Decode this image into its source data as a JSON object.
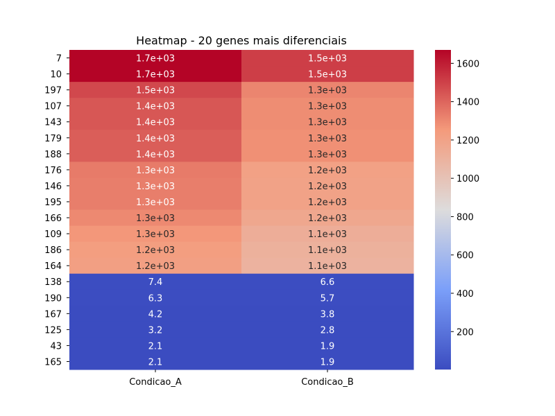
{
  "chart_data": {
    "type": "heatmap",
    "title": "Heatmap - 20 genes mais diferenciais",
    "columns": [
      "Condicao_A",
      "Condicao_B"
    ],
    "rows": [
      "7",
      "10",
      "197",
      "107",
      "143",
      "179",
      "188",
      "176",
      "146",
      "195",
      "166",
      "109",
      "186",
      "164",
      "138",
      "190",
      "167",
      "125",
      "43",
      "165"
    ],
    "values": [
      [
        1670,
        1510
      ],
      [
        1670,
        1510
      ],
      [
        1480,
        1310
      ],
      [
        1440,
        1290
      ],
      [
        1440,
        1290
      ],
      [
        1420,
        1280
      ],
      [
        1420,
        1280
      ],
      [
        1340,
        1210
      ],
      [
        1330,
        1200
      ],
      [
        1330,
        1200
      ],
      [
        1300,
        1170
      ],
      [
        1260,
        1130
      ],
      [
        1230,
        1110
      ],
      [
        1220,
        1100
      ],
      [
        7.4,
        6.6
      ],
      [
        6.3,
        5.7
      ],
      [
        4.2,
        3.8
      ],
      [
        3.2,
        2.8
      ],
      [
        2.1,
        1.9
      ],
      [
        2.1,
        1.9
      ]
    ],
    "annotations": [
      [
        "1.7e+03",
        "1.5e+03"
      ],
      [
        "1.7e+03",
        "1.5e+03"
      ],
      [
        "1.5e+03",
        "1.3e+03"
      ],
      [
        "1.4e+03",
        "1.3e+03"
      ],
      [
        "1.4e+03",
        "1.3e+03"
      ],
      [
        "1.4e+03",
        "1.3e+03"
      ],
      [
        "1.4e+03",
        "1.3e+03"
      ],
      [
        "1.3e+03",
        "1.2e+03"
      ],
      [
        "1.3e+03",
        "1.2e+03"
      ],
      [
        "1.3e+03",
        "1.2e+03"
      ],
      [
        "1.3e+03",
        "1.2e+03"
      ],
      [
        "1.3e+03",
        "1.1e+03"
      ],
      [
        "1.2e+03",
        "1.1e+03"
      ],
      [
        "1.2e+03",
        "1.1e+03"
      ],
      [
        "7.4",
        "6.6"
      ],
      [
        "6.3",
        "5.7"
      ],
      [
        "4.2",
        "3.8"
      ],
      [
        "3.2",
        "2.8"
      ],
      [
        "2.1",
        "1.9"
      ],
      [
        "2.1",
        "1.9"
      ]
    ],
    "colormap": "coolwarm",
    "color_range": [
      1.9,
      1670
    ],
    "colorbar_ticks": [
      200,
      400,
      600,
      800,
      1000,
      1200,
      1400,
      1600
    ],
    "colorbar_tick_labels": [
      "200",
      "400",
      "600",
      "800",
      "1000",
      "1200",
      "1400",
      "1600"
    ],
    "grid": false,
    "legend": "colorbar-right"
  }
}
